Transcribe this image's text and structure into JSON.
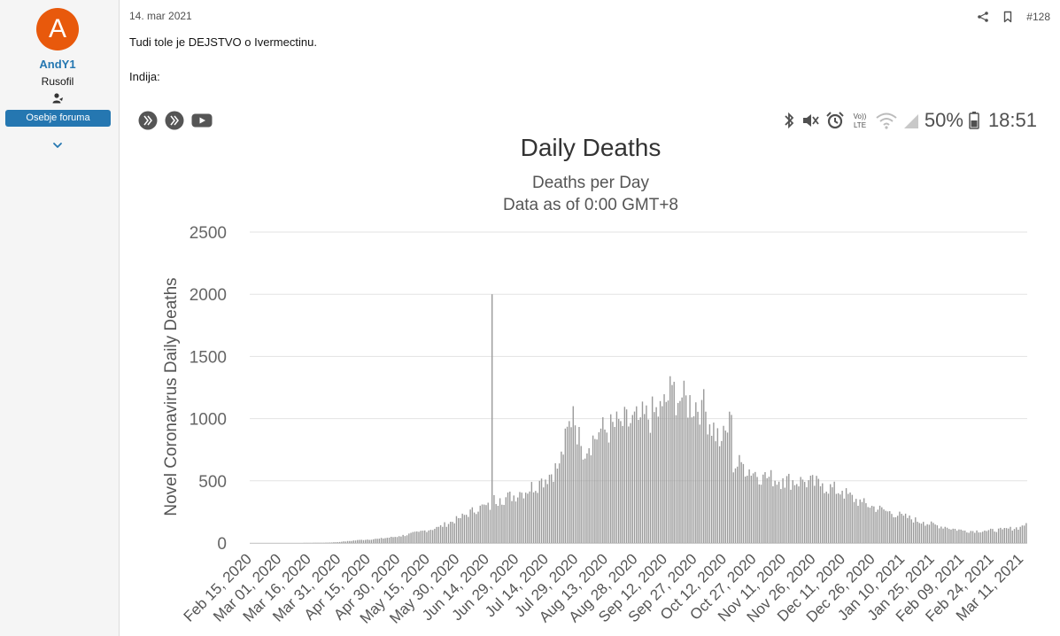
{
  "post": {
    "date": "14. mar 2021",
    "number": "#128",
    "line1": "Tudi tole je DEJSTVO o Ivermectinu.",
    "line2": "Indija:"
  },
  "user": {
    "initial": "A",
    "name": "AndY1",
    "title": "Rusofil",
    "badge": "Osebje foruma",
    "avatar_color": "#e8590c",
    "accent": "#2577b1"
  },
  "status_bar": {
    "battery": "50%",
    "time": "18:51"
  },
  "chart_data": {
    "type": "bar",
    "title": "Daily Deaths",
    "subtitle": "Deaths per Day",
    "subtitle2": "Data as of 0:00 GMT+8",
    "ylabel": "Novel Coronavirus Daily Deaths",
    "xlabel": "",
    "ylim": [
      0,
      2500
    ],
    "yticks": [
      0,
      500,
      1000,
      1500,
      2000,
      2500
    ],
    "bar_color": "#999999",
    "grid": true,
    "x_start": "2020-02-15",
    "x_end": "2021-03-13",
    "x_tick_labels": [
      "Feb 15, 2020",
      "Mar 01, 2020",
      "Mar 16, 2020",
      "Mar 31, 2020",
      "Apr 15, 2020",
      "Apr 30, 2020",
      "May 15, 2020",
      "May 30, 2020",
      "Jun 14, 2020",
      "Jun 29, 2020",
      "Jul 14, 2020",
      "Jul 29, 2020",
      "Aug 13, 2020",
      "Aug 28, 2020",
      "Sep 12, 2020",
      "Sep 27, 2020",
      "Oct 12, 2020",
      "Oct 27, 2020",
      "Nov 11, 2020",
      "Nov 26, 2020",
      "Dec 11, 2020",
      "Dec 26, 2020",
      "Jan 10, 2021",
      "Jan 25, 2021",
      "Feb 09, 2021",
      "Feb 24, 2021",
      "Mar 11, 2021"
    ],
    "series": [
      {
        "points": [
          [
            "2020-02-15",
            0
          ],
          [
            "2020-03-10",
            0
          ],
          [
            "2020-03-25",
            3
          ],
          [
            "2020-04-01",
            10
          ],
          [
            "2020-04-10",
            25
          ],
          [
            "2020-04-20",
            35
          ],
          [
            "2020-04-30",
            55
          ],
          [
            "2020-05-10",
            90
          ],
          [
            "2020-05-20",
            130
          ],
          [
            "2020-05-30",
            200
          ],
          [
            "2020-06-10",
            300
          ],
          [
            "2020-06-16",
            2000
          ],
          [
            "2020-06-20",
            360
          ],
          [
            "2020-06-30",
            410
          ],
          [
            "2020-07-10",
            500
          ],
          [
            "2020-07-20",
            640
          ],
          [
            "2020-07-27",
            1100
          ],
          [
            "2020-07-31",
            780
          ],
          [
            "2020-08-10",
            920
          ],
          [
            "2020-08-20",
            980
          ],
          [
            "2020-08-30",
            1010
          ],
          [
            "2020-09-10",
            1100
          ],
          [
            "2020-09-15",
            1270
          ],
          [
            "2020-09-20",
            1170
          ],
          [
            "2020-09-30",
            1150
          ],
          [
            "2020-10-10",
            820
          ],
          [
            "2020-10-15",
            1030
          ],
          [
            "2020-10-20",
            650
          ],
          [
            "2020-10-31",
            550
          ],
          [
            "2020-11-10",
            520
          ],
          [
            "2020-11-20",
            510
          ],
          [
            "2020-11-30",
            480
          ],
          [
            "2020-12-10",
            420
          ],
          [
            "2020-12-20",
            330
          ],
          [
            "2020-12-31",
            270
          ],
          [
            "2021-01-10",
            220
          ],
          [
            "2021-01-20",
            170
          ],
          [
            "2021-01-31",
            130
          ],
          [
            "2021-02-10",
            100
          ],
          [
            "2021-02-20",
            100
          ],
          [
            "2021-03-01",
            110
          ],
          [
            "2021-03-10",
            130
          ],
          [
            "2021-03-13",
            160
          ]
        ]
      }
    ]
  }
}
